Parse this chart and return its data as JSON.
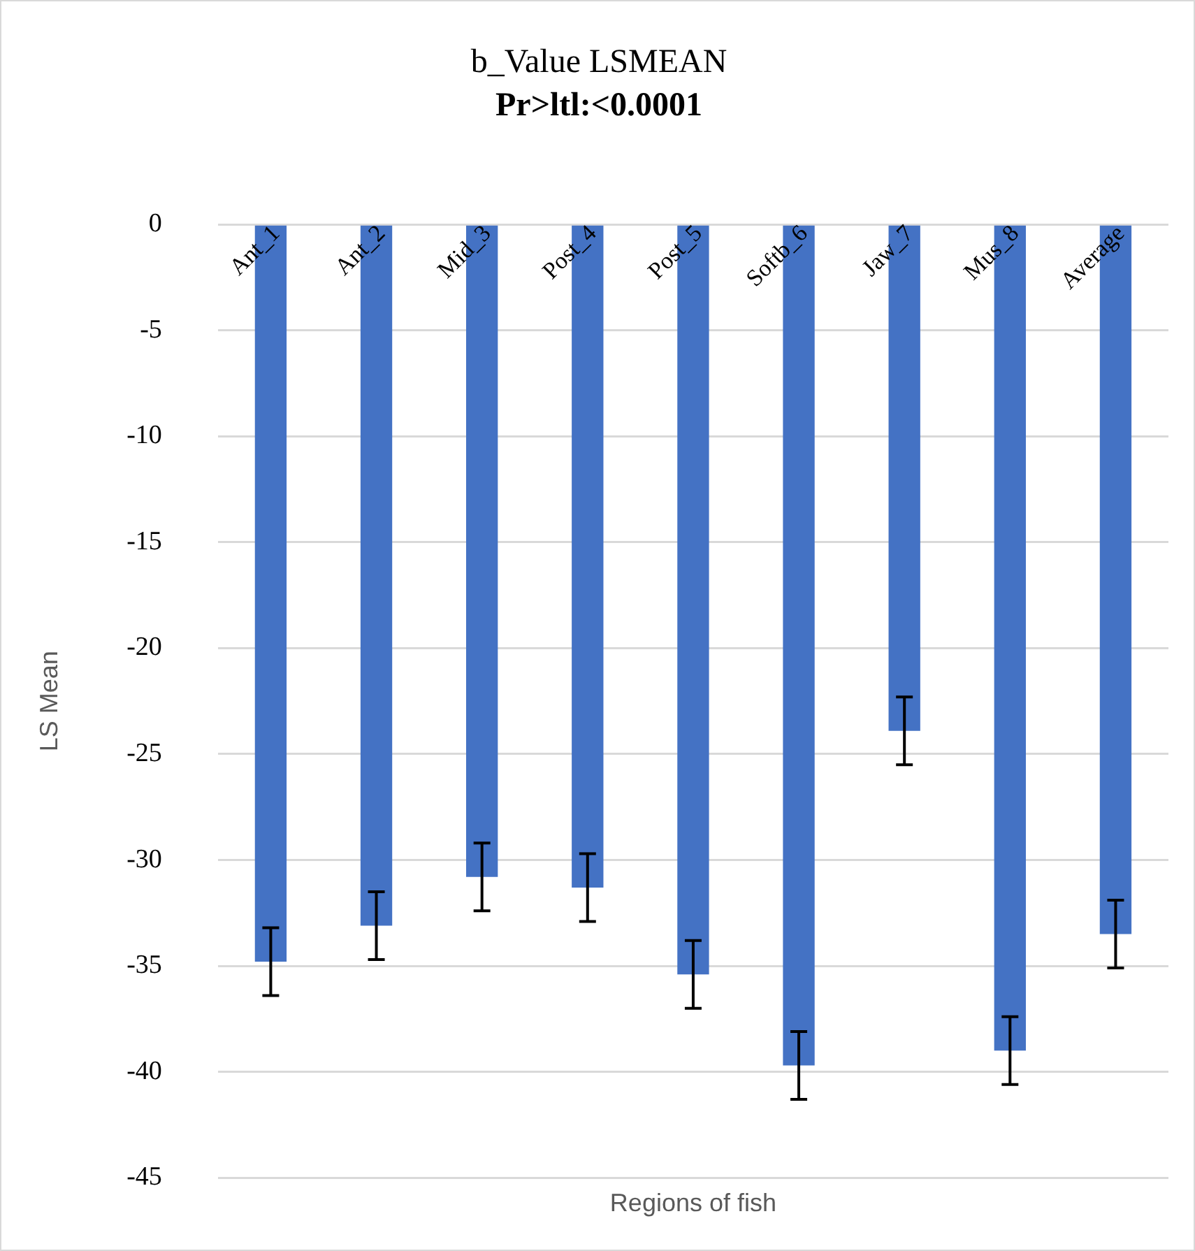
{
  "chart_data": {
    "type": "bar",
    "title": "b_Value LSMEAN",
    "subtitle": "Pr>ltl:<0.0001",
    "xlabel": "Regions of fish",
    "ylabel": "LS Mean",
    "categories": [
      "Ant_1",
      "Ant_2",
      "Mid_3",
      "Post_4",
      "Post_5",
      "Softb_6",
      "Jaw_7",
      "Mus_8",
      "Average"
    ],
    "values": [
      -34.8,
      -33.1,
      -30.8,
      -31.3,
      -35.4,
      -39.7,
      -23.9,
      -39.0,
      -33.5
    ],
    "errors": [
      1.6,
      1.6,
      1.6,
      1.6,
      1.6,
      1.6,
      1.6,
      1.6,
      1.6
    ],
    "color": "#4472c4",
    "ylim": [
      -45,
      0
    ],
    "yticks": [
      -45,
      -40,
      -35,
      -30,
      -25,
      -20,
      -15,
      -10,
      -5,
      0
    ],
    "grid": "y",
    "legend": false
  }
}
